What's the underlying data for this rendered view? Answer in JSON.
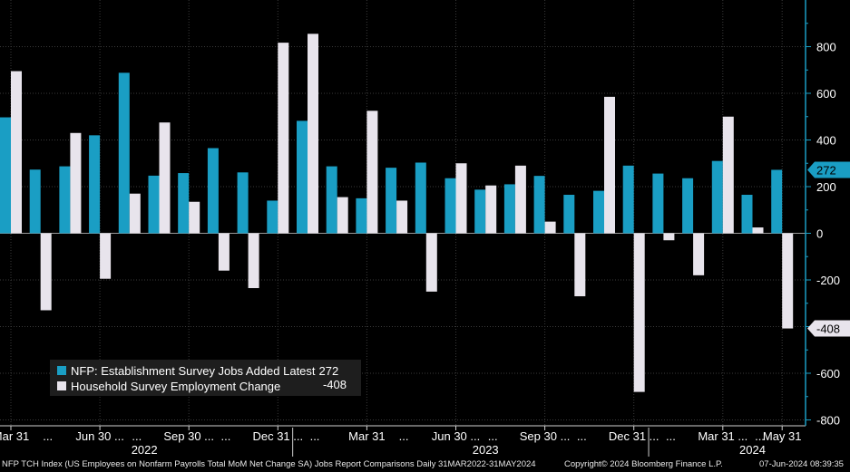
{
  "chart_data": {
    "type": "bar",
    "categories": [
      "2022-03",
      "2022-04",
      "2022-05",
      "2022-06",
      "2022-07",
      "2022-08",
      "2022-09",
      "2022-10",
      "2022-11",
      "2022-12",
      "2023-01",
      "2023-02",
      "2023-03",
      "2023-04",
      "2023-05",
      "2023-06",
      "2023-07",
      "2023-08",
      "2023-09",
      "2023-10",
      "2023-11",
      "2023-12",
      "2024-01",
      "2024-02",
      "2024-03",
      "2024-04",
      "2024-05"
    ],
    "series": [
      {
        "name": "NFP: Establishment Survey Jobs Added",
        "latest": "272",
        "values": [
          497,
          273,
          287,
          420,
          688,
          247,
          258,
          365,
          261,
          140,
          482,
          287,
          150,
          281,
          303,
          236,
          187,
          210,
          246,
          165,
          182,
          290,
          256,
          236,
          310,
          165,
          272
        ]
      },
      {
        "name": "Household Survey Employment Change",
        "latest": "-408",
        "values": [
          695,
          -330,
          430,
          -195,
          170,
          475,
          135,
          -160,
          -235,
          817,
          855,
          155,
          525,
          140,
          -250,
          300,
          205,
          290,
          50,
          -270,
          585,
          -680,
          -30,
          -180,
          500,
          25,
          -408
        ]
      }
    ],
    "ylim": [
      -800,
      1000
    ],
    "yticks": [
      "800",
      "600",
      "400",
      "200",
      "0",
      "-200",
      "-400",
      "-600",
      "-800"
    ],
    "ytick_values": [
      800,
      600,
      400,
      200,
      0,
      -200,
      -400,
      -600,
      -800
    ],
    "xtick_labels": [
      "Mar 31",
      "Jun 30 ...",
      "Sep 30 ...",
      "Dec 31 ...",
      "Mar 31",
      "Jun 30 ...",
      "Sep 30 ...",
      "Dec 31 ...",
      "Mar 31 ...",
      "May 31"
    ],
    "xtick_category_index": [
      0,
      3,
      6,
      9,
      12,
      15,
      18,
      21,
      24,
      26
    ],
    "ellipsis_label": "...",
    "ellipsis_category_index": [
      1,
      4,
      7,
      10,
      13,
      16,
      19,
      22,
      25
    ],
    "years": [
      "2022",
      "2023",
      "2024"
    ],
    "year_center_index": [
      4.5,
      16,
      25
    ],
    "year_divider_index": [
      9.5,
      21.5
    ],
    "last_value_tags": [
      "272",
      "-408"
    ],
    "grid": true,
    "legend_position": "bottom-left",
    "colors": {
      "establishment": "#1a9ec4",
      "household": "#e8e4ec",
      "axis": "#1a9ec4",
      "grid": "#3a3a3a"
    }
  },
  "footer": {
    "left": "NFP TCH Index (US Employees on Nonfarm Payrolls Total MoM Net Change SA) Jobs Report Comparisons  Daily 31MAR2022-31MAY2024",
    "center": "Copyright© 2024 Bloomberg Finance L.P.",
    "right": "07-Jun-2024 08:39:35"
  },
  "legend": {
    "establishment_label": "NFP: Establishment Survey Jobs Added Latest",
    "establishment_value": "272",
    "household_label": "Household Survey Employment Change",
    "household_value": "-408"
  }
}
